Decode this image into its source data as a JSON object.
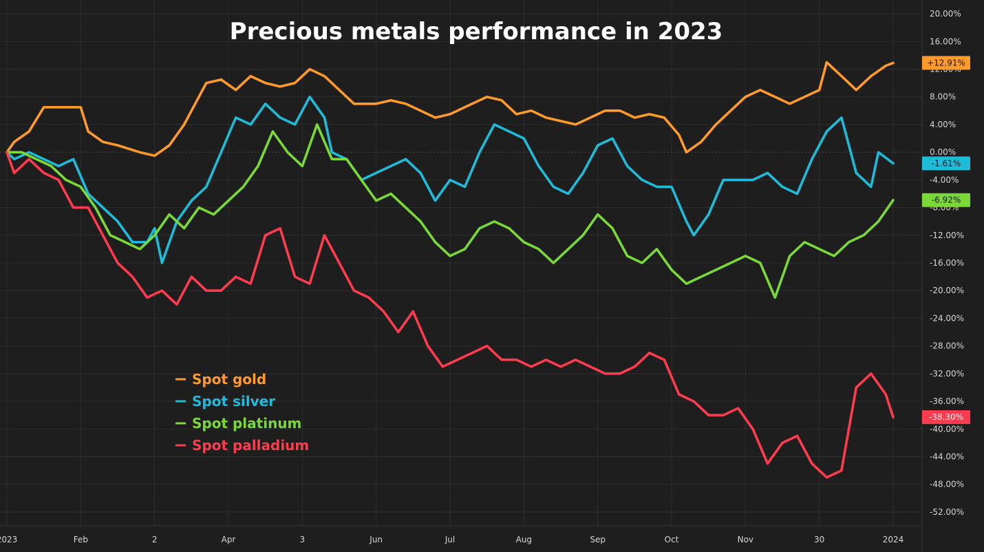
{
  "chart_data": {
    "type": "line",
    "title": "Precious metals performance in 2023",
    "y_ticks": [
      "20.00%",
      "16.00%",
      "12.00%",
      "8.00%",
      "4.00%",
      "0.00%",
      "-4.00%",
      "-8.00%",
      "-12.00%",
      "-16.00%",
      "-20.00%",
      "-24.00%",
      "-28.00%",
      "-32.00%",
      "-36.00%",
      "-40.00%",
      "-44.00%",
      "-48.00%",
      "-52.00%"
    ],
    "x_ticks": [
      "2023",
      "Feb",
      "2",
      "Apr",
      "3",
      "Jun",
      "Jul",
      "Aug",
      "Sep",
      "Oct",
      "Nov",
      "30",
      "2024"
    ],
    "ylim": [
      -54,
      22
    ],
    "xlim": [
      0,
      12
    ],
    "grid": true,
    "legend_position": "bottom-left",
    "series": [
      {
        "name": "Spot gold",
        "color": "#ff9a2b",
        "end_label": "+12.91%",
        "points": [
          [
            0,
            0
          ],
          [
            0.1,
            1.5
          ],
          [
            0.3,
            3
          ],
          [
            0.5,
            6.5
          ],
          [
            0.8,
            6.5
          ],
          [
            1.0,
            6.5
          ],
          [
            1.1,
            3
          ],
          [
            1.3,
            1.5
          ],
          [
            1.5,
            1
          ],
          [
            1.8,
            0
          ],
          [
            2.0,
            -0.5
          ],
          [
            2.2,
            1
          ],
          [
            2.4,
            4
          ],
          [
            2.5,
            6
          ],
          [
            2.7,
            10
          ],
          [
            2.9,
            10.5
          ],
          [
            3.1,
            9
          ],
          [
            3.3,
            11
          ],
          [
            3.5,
            10
          ],
          [
            3.7,
            9.5
          ],
          [
            3.9,
            10
          ],
          [
            4.1,
            12
          ],
          [
            4.3,
            11
          ],
          [
            4.5,
            9
          ],
          [
            4.7,
            7
          ],
          [
            5.0,
            7
          ],
          [
            5.2,
            7.5
          ],
          [
            5.4,
            7
          ],
          [
            5.6,
            6
          ],
          [
            5.8,
            5
          ],
          [
            6.0,
            5.5
          ],
          [
            6.2,
            6.5
          ],
          [
            6.4,
            7.5
          ],
          [
            6.5,
            8
          ],
          [
            6.7,
            7.5
          ],
          [
            6.9,
            5.5
          ],
          [
            7.1,
            6
          ],
          [
            7.3,
            5
          ],
          [
            7.5,
            4.5
          ],
          [
            7.7,
            4
          ],
          [
            7.9,
            5
          ],
          [
            8.1,
            6
          ],
          [
            8.3,
            6
          ],
          [
            8.5,
            5
          ],
          [
            8.7,
            5.5
          ],
          [
            8.9,
            5
          ],
          [
            9.1,
            2.5
          ],
          [
            9.2,
            0
          ],
          [
            9.4,
            1.5
          ],
          [
            9.6,
            4
          ],
          [
            9.8,
            6
          ],
          [
            10.0,
            8
          ],
          [
            10.2,
            9
          ],
          [
            10.4,
            8
          ],
          [
            10.6,
            7
          ],
          [
            10.8,
            8
          ],
          [
            11.0,
            9
          ],
          [
            11.1,
            13
          ],
          [
            11.3,
            11
          ],
          [
            11.5,
            9
          ],
          [
            11.7,
            11
          ],
          [
            11.9,
            12.5
          ],
          [
            12.0,
            12.91
          ]
        ]
      },
      {
        "name": "Spot silver",
        "color": "#1ebcd9",
        "end_label": "-1.61%",
        "points": [
          [
            0,
            0
          ],
          [
            0.1,
            -1
          ],
          [
            0.3,
            0
          ],
          [
            0.5,
            -1
          ],
          [
            0.7,
            -2
          ],
          [
            0.9,
            -1
          ],
          [
            1.1,
            -6
          ],
          [
            1.3,
            -8
          ],
          [
            1.5,
            -10
          ],
          [
            1.7,
            -13
          ],
          [
            1.9,
            -13
          ],
          [
            2.0,
            -11
          ],
          [
            2.1,
            -16
          ],
          [
            2.3,
            -10
          ],
          [
            2.5,
            -7
          ],
          [
            2.7,
            -5
          ],
          [
            2.9,
            0
          ],
          [
            3.1,
            5
          ],
          [
            3.3,
            4
          ],
          [
            3.5,
            7
          ],
          [
            3.7,
            5
          ],
          [
            3.9,
            4
          ],
          [
            4.1,
            8
          ],
          [
            4.3,
            5
          ],
          [
            4.4,
            0
          ],
          [
            4.6,
            -1
          ],
          [
            4.8,
            -4
          ],
          [
            5.0,
            -3
          ],
          [
            5.2,
            -2
          ],
          [
            5.4,
            -1
          ],
          [
            5.6,
            -3
          ],
          [
            5.8,
            -7
          ],
          [
            6.0,
            -4
          ],
          [
            6.2,
            -5
          ],
          [
            6.4,
            0
          ],
          [
            6.6,
            4
          ],
          [
            6.8,
            3
          ],
          [
            7.0,
            2
          ],
          [
            7.2,
            -2
          ],
          [
            7.4,
            -5
          ],
          [
            7.6,
            -6
          ],
          [
            7.8,
            -3
          ],
          [
            8.0,
            1
          ],
          [
            8.2,
            2
          ],
          [
            8.4,
            -2
          ],
          [
            8.6,
            -4
          ],
          [
            8.8,
            -5
          ],
          [
            9.0,
            -5
          ],
          [
            9.2,
            -10
          ],
          [
            9.3,
            -12
          ],
          [
            9.5,
            -9
          ],
          [
            9.7,
            -4
          ],
          [
            9.9,
            -4
          ],
          [
            10.1,
            -4
          ],
          [
            10.3,
            -3
          ],
          [
            10.5,
            -5
          ],
          [
            10.7,
            -6
          ],
          [
            10.9,
            -1
          ],
          [
            11.1,
            3
          ],
          [
            11.3,
            5
          ],
          [
            11.5,
            -3
          ],
          [
            11.7,
            -5
          ],
          [
            11.8,
            0
          ],
          [
            12.0,
            -1.61
          ]
        ]
      },
      {
        "name": "Spot platinum",
        "color": "#7ad837",
        "end_label": "-6.92%",
        "points": [
          [
            0,
            0
          ],
          [
            0.2,
            0
          ],
          [
            0.4,
            -1
          ],
          [
            0.6,
            -2
          ],
          [
            0.8,
            -4
          ],
          [
            1.0,
            -5
          ],
          [
            1.2,
            -8
          ],
          [
            1.4,
            -12
          ],
          [
            1.6,
            -13
          ],
          [
            1.8,
            -14
          ],
          [
            2.0,
            -12
          ],
          [
            2.2,
            -9
          ],
          [
            2.4,
            -11
          ],
          [
            2.6,
            -8
          ],
          [
            2.8,
            -9
          ],
          [
            3.0,
            -7
          ],
          [
            3.2,
            -5
          ],
          [
            3.4,
            -2
          ],
          [
            3.6,
            3
          ],
          [
            3.8,
            0
          ],
          [
            4.0,
            -2
          ],
          [
            4.2,
            4
          ],
          [
            4.4,
            -1
          ],
          [
            4.6,
            -1
          ],
          [
            4.8,
            -4
          ],
          [
            5.0,
            -7
          ],
          [
            5.2,
            -6
          ],
          [
            5.4,
            -8
          ],
          [
            5.6,
            -10
          ],
          [
            5.8,
            -13
          ],
          [
            6.0,
            -15
          ],
          [
            6.2,
            -14
          ],
          [
            6.4,
            -11
          ],
          [
            6.6,
            -10
          ],
          [
            6.8,
            -11
          ],
          [
            7.0,
            -13
          ],
          [
            7.2,
            -14
          ],
          [
            7.4,
            -16
          ],
          [
            7.6,
            -14
          ],
          [
            7.8,
            -12
          ],
          [
            8.0,
            -9
          ],
          [
            8.2,
            -11
          ],
          [
            8.4,
            -15
          ],
          [
            8.6,
            -16
          ],
          [
            8.8,
            -14
          ],
          [
            9.0,
            -17
          ],
          [
            9.2,
            -19
          ],
          [
            9.4,
            -18
          ],
          [
            9.6,
            -17
          ],
          [
            9.8,
            -16
          ],
          [
            10.0,
            -15
          ],
          [
            10.2,
            -16
          ],
          [
            10.4,
            -21
          ],
          [
            10.6,
            -15
          ],
          [
            10.8,
            -13
          ],
          [
            11.0,
            -14
          ],
          [
            11.2,
            -15
          ],
          [
            11.4,
            -13
          ],
          [
            11.6,
            -12
          ],
          [
            11.8,
            -10
          ],
          [
            12.0,
            -6.92
          ]
        ]
      },
      {
        "name": "Spot palladium",
        "color": "#ff3b4e",
        "end_label": "-38.30%",
        "points": [
          [
            0,
            0
          ],
          [
            0.1,
            -3
          ],
          [
            0.3,
            -1
          ],
          [
            0.5,
            -3
          ],
          [
            0.7,
            -4
          ],
          [
            0.9,
            -8
          ],
          [
            1.1,
            -8
          ],
          [
            1.3,
            -12
          ],
          [
            1.5,
            -16
          ],
          [
            1.7,
            -18
          ],
          [
            1.9,
            -21
          ],
          [
            2.1,
            -20
          ],
          [
            2.3,
            -22
          ],
          [
            2.5,
            -18
          ],
          [
            2.7,
            -20
          ],
          [
            2.9,
            -20
          ],
          [
            3.1,
            -18
          ],
          [
            3.3,
            -19
          ],
          [
            3.5,
            -12
          ],
          [
            3.7,
            -11
          ],
          [
            3.9,
            -18
          ],
          [
            4.1,
            -19
          ],
          [
            4.3,
            -12
          ],
          [
            4.5,
            -16
          ],
          [
            4.7,
            -20
          ],
          [
            4.9,
            -21
          ],
          [
            5.1,
            -23
          ],
          [
            5.3,
            -26
          ],
          [
            5.5,
            -23
          ],
          [
            5.7,
            -28
          ],
          [
            5.9,
            -31
          ],
          [
            6.1,
            -30
          ],
          [
            6.3,
            -29
          ],
          [
            6.5,
            -28
          ],
          [
            6.7,
            -30
          ],
          [
            6.9,
            -30
          ],
          [
            7.1,
            -31
          ],
          [
            7.3,
            -30
          ],
          [
            7.5,
            -31
          ],
          [
            7.7,
            -30
          ],
          [
            7.9,
            -31
          ],
          [
            8.1,
            -32
          ],
          [
            8.3,
            -32
          ],
          [
            8.5,
            -31
          ],
          [
            8.7,
            -29
          ],
          [
            8.9,
            -30
          ],
          [
            9.1,
            -35
          ],
          [
            9.3,
            -36
          ],
          [
            9.5,
            -38
          ],
          [
            9.7,
            -38
          ],
          [
            9.9,
            -37
          ],
          [
            10.1,
            -40
          ],
          [
            10.3,
            -45
          ],
          [
            10.5,
            -42
          ],
          [
            10.7,
            -41
          ],
          [
            10.9,
            -45
          ],
          [
            11.1,
            -47
          ],
          [
            11.3,
            -46
          ],
          [
            11.5,
            -34
          ],
          [
            11.7,
            -32
          ],
          [
            11.9,
            -35
          ],
          [
            12.0,
            -38.3
          ]
        ]
      }
    ]
  }
}
